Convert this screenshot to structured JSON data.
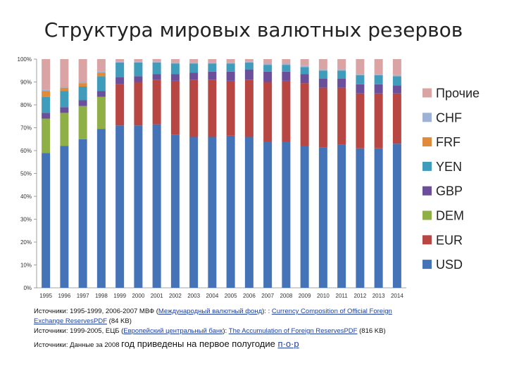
{
  "chart_data": {
    "type": "bar",
    "stacked": true,
    "title": "Структура мировых валютных резервов",
    "categories": [
      "1995",
      "1996",
      "1997",
      "1998",
      "1999",
      "2000",
      "2001",
      "2002",
      "2003",
      "2004",
      "2005",
      "2006",
      "2007",
      "2008",
      "2009",
      "2010",
      "2011",
      "2012",
      "2013",
      "2014"
    ],
    "ylim": [
      0,
      100
    ],
    "yticks": [
      "0%",
      "10%",
      "20%",
      "30%",
      "40%",
      "50%",
      "60%",
      "70%",
      "80%",
      "90%",
      "100%"
    ],
    "legend_position": "right",
    "series": [
      {
        "name": "USD",
        "color": "#4573b8",
        "values": [
          59,
          62,
          65,
          69.5,
          71,
          71,
          71.5,
          67,
          66,
          66,
          66.5,
          66,
          64,
          64,
          62,
          61.5,
          62.5,
          61,
          61,
          63
        ]
      },
      {
        "name": "EUR",
        "color": "#b84743",
        "values": [
          0,
          0,
          0,
          0,
          18,
          19,
          19.5,
          23.5,
          25,
          25,
          24,
          25,
          26,
          26.5,
          27.5,
          26,
          25,
          24,
          24,
          22
        ]
      },
      {
        "name": "DEM",
        "color": "#8faf47",
        "values": [
          15,
          14.5,
          14.5,
          14,
          0,
          0,
          0,
          0,
          0,
          0,
          0,
          0,
          0,
          0,
          0,
          0,
          0,
          0,
          0,
          0
        ]
      },
      {
        "name": "GBP",
        "color": "#6c4f9a",
        "values": [
          2.5,
          2.5,
          2.5,
          2.5,
          3,
          2.5,
          2.5,
          3,
          3,
          3.5,
          4,
          4.5,
          4.5,
          4,
          4,
          4,
          4,
          4,
          4,
          3.5
        ]
      },
      {
        "name": "YEN",
        "color": "#3f9dbb",
        "values": [
          7,
          7,
          6,
          6.5,
          6.5,
          6,
          5,
          4.5,
          4,
          3.5,
          3.5,
          3,
          3,
          3,
          3,
          3.5,
          3.5,
          4,
          4,
          4
        ]
      },
      {
        "name": "FRF",
        "color": "#e08a3c",
        "values": [
          2.5,
          1.5,
          1.5,
          1.5,
          0,
          0,
          0,
          0,
          0,
          0,
          0,
          0,
          0,
          0,
          0,
          0,
          0,
          0,
          0,
          0
        ]
      },
      {
        "name": "CHF",
        "color": "#9db2d6",
        "values": [
          0.5,
          0.5,
          0.5,
          0.5,
          0.5,
          0.5,
          0.5,
          0.5,
          0.5,
          0.5,
          0.5,
          0.5,
          0.5,
          0.5,
          0.5,
          0.5,
          0.5,
          0.5,
          0.5,
          0.5
        ]
      },
      {
        "name": "Прочие",
        "color": "#dba4a4",
        "values": [
          13.5,
          12,
          10,
          5.5,
          1,
          1,
          1,
          1.5,
          1.5,
          1.5,
          1.5,
          1,
          2,
          2,
          3,
          4.5,
          4.5,
          6.5,
          6.5,
          7
        ]
      }
    ]
  },
  "sources": {
    "line1_prefix": "Источники: 1995-1999, 2006-2007 МВФ (",
    "line1_link1": "Международный валютный фонд",
    "line1_mid": "): : ",
    "line1_link2": "Currency Composition of Official Foreign",
    "line2_link": "Exchange ReservesPDF",
    "line2_suffix": " (84 KB)",
    "line3_prefix": "Источники: 1999-2005, ЕЦБ (",
    "line3_link1": "Европейский центральный банк",
    "line3_mid": "): ",
    "line3_link2": "The Accumulation of Foreign ReservesPDF",
    "line3_suffix": " (816 KB)",
    "line4_small": "Источники: Данные за 2008 ",
    "line4_big": "год приведены на первое полугодие ",
    "line4_link": "п·о·р"
  }
}
